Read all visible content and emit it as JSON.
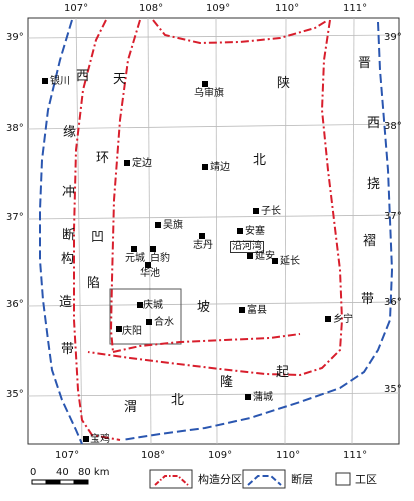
{
  "map": {
    "longitude_ticks": [
      "107°",
      "108°",
      "109°",
      "110°",
      "111°"
    ],
    "latitude_ticks": [
      "39°",
      "38°",
      "37°",
      "36°",
      "35°"
    ],
    "region_labels": [
      "晋",
      "西",
      "西",
      "天",
      "陕",
      "缘",
      "环",
      "北",
      "冲",
      "挠",
      "断",
      "凹",
      "褶",
      "构",
      "陷",
      "坡",
      "带",
      "造",
      "带",
      "渭",
      "北",
      "隆",
      "起"
    ],
    "cities": [
      {
        "name": "银川"
      },
      {
        "name": "乌审旗"
      },
      {
        "name": "定边"
      },
      {
        "name": "靖边"
      },
      {
        "name": "子长"
      },
      {
        "name": "吴旗"
      },
      {
        "name": "志丹"
      },
      {
        "name": "安塞"
      },
      {
        "name": "元城"
      },
      {
        "name": "白豹"
      },
      {
        "name": "华池"
      },
      {
        "name": "沿河湾"
      },
      {
        "name": "延安"
      },
      {
        "name": "延长"
      },
      {
        "name": "庆城"
      },
      {
        "name": "合水"
      },
      {
        "name": "富县"
      },
      {
        "name": "乡宁"
      },
      {
        "name": "庆阳"
      },
      {
        "name": "蒲城"
      },
      {
        "name": "宝鸡"
      }
    ],
    "scale": {
      "labels": [
        "0",
        "40",
        "80 km"
      ]
    },
    "legend": [
      {
        "label": "构造分区"
      },
      {
        "label": "断层"
      },
      {
        "label": "工区"
      }
    ],
    "colors": {
      "tectonic_boundary": "#d81e2c",
      "fault": "#2a56b0"
    }
  }
}
